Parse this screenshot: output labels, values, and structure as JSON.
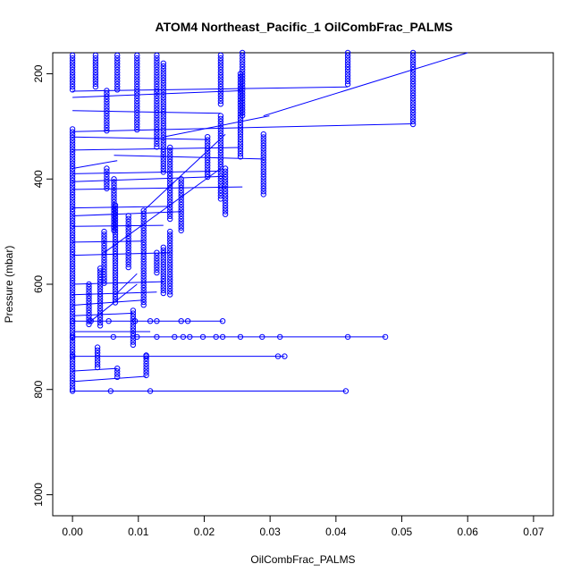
{
  "chart_data": {
    "type": "scatter",
    "title": "ATOM4 Northeast_Pacific_1 OilCombFrac_PALMS",
    "xlabel": "OilCombFrac_PALMS",
    "ylabel": "Pressure (mbar)",
    "xlim": [
      -0.003,
      0.073
    ],
    "ylim": [
      1040,
      160
    ],
    "y_reversed": true,
    "x_ticks": [
      0.0,
      0.01,
      0.02,
      0.03,
      0.04,
      0.05,
      0.06,
      0.07
    ],
    "x_tick_labels": [
      "0.00",
      "0.01",
      "0.02",
      "0.03",
      "0.04",
      "0.05",
      "0.06",
      "0.07"
    ],
    "y_ticks": [
      200,
      400,
      600,
      800,
      1000
    ],
    "y_tick_labels": [
      "200",
      "400",
      "600",
      "800",
      "1000"
    ],
    "color": "#0000ff",
    "marker": "open-circle",
    "grid": false,
    "columns": [
      {
        "x": 0.0,
        "p_top": 305,
        "p_bottom": 805
      },
      {
        "x": 0.0,
        "p_top": 165,
        "p_bottom": 232
      },
      {
        "x": 0.0035,
        "p_top": 165,
        "p_bottom": 230
      },
      {
        "x": 0.0052,
        "p_top": 232,
        "p_bottom": 310
      },
      {
        "x": 0.0052,
        "p_top": 380,
        "p_bottom": 420
      },
      {
        "x": 0.0063,
        "p_top": 400,
        "p_bottom": 500
      },
      {
        "x": 0.0068,
        "p_top": 165,
        "p_bottom": 232
      },
      {
        "x": 0.0098,
        "p_top": 165,
        "p_bottom": 308
      },
      {
        "x": 0.0128,
        "p_top": 165,
        "p_bottom": 340
      },
      {
        "x": 0.0138,
        "p_top": 180,
        "p_bottom": 390
      },
      {
        "x": 0.0148,
        "p_top": 340,
        "p_bottom": 480
      },
      {
        "x": 0.0165,
        "p_top": 400,
        "p_bottom": 500
      },
      {
        "x": 0.0205,
        "p_top": 320,
        "p_bottom": 400
      },
      {
        "x": 0.0225,
        "p_top": 165,
        "p_bottom": 260
      },
      {
        "x": 0.0225,
        "p_top": 280,
        "p_bottom": 440
      },
      {
        "x": 0.0232,
        "p_top": 380,
        "p_bottom": 470
      },
      {
        "x": 0.0255,
        "p_top": 200,
        "p_bottom": 360
      },
      {
        "x": 0.0258,
        "p_top": 160,
        "p_bottom": 280
      },
      {
        "x": 0.029,
        "p_top": 315,
        "p_bottom": 430
      },
      {
        "x": 0.0418,
        "p_top": 160,
        "p_bottom": 225
      },
      {
        "x": 0.0517,
        "p_top": 160,
        "p_bottom": 300
      },
      {
        "x": 0.0025,
        "p_top": 600,
        "p_bottom": 680
      },
      {
        "x": 0.0042,
        "p_top": 570,
        "p_bottom": 680
      },
      {
        "x": 0.0048,
        "p_top": 500,
        "p_bottom": 600
      },
      {
        "x": 0.0065,
        "p_top": 450,
        "p_bottom": 640
      },
      {
        "x": 0.0085,
        "p_top": 470,
        "p_bottom": 570
      },
      {
        "x": 0.0092,
        "p_top": 650,
        "p_bottom": 720
      },
      {
        "x": 0.0108,
        "p_top": 460,
        "p_bottom": 640
      },
      {
        "x": 0.0128,
        "p_top": 540,
        "p_bottom": 580
      },
      {
        "x": 0.0138,
        "p_top": 530,
        "p_bottom": 620
      },
      {
        "x": 0.0148,
        "p_top": 500,
        "p_bottom": 620
      },
      {
        "x": 0.0038,
        "p_top": 720,
        "p_bottom": 760
      },
      {
        "x": 0.0068,
        "p_top": 760,
        "p_bottom": 780
      },
      {
        "x": 0.0112,
        "p_top": 735,
        "p_bottom": 775
      }
    ],
    "levels": [
      {
        "p": 670,
        "x": [
          0.0,
          0.0028,
          0.0055,
          0.0095,
          0.0118,
          0.0128,
          0.0165,
          0.0175,
          0.0228
        ]
      },
      {
        "p": 700,
        "x": [
          0.0,
          0.0062,
          0.0098,
          0.0128,
          0.0155,
          0.0168,
          0.0178,
          0.0198,
          0.0218,
          0.0228,
          0.0255,
          0.0288,
          0.0315,
          0.0418,
          0.0475
        ]
      },
      {
        "p": 737,
        "x": [
          0.0,
          0.0112,
          0.0312,
          0.0322
        ]
      },
      {
        "p": 803,
        "x": [
          0.0,
          0.0058,
          0.0118,
          0.0415
        ]
      }
    ],
    "connectors": [
      {
        "x": [
          0.0,
          0.0418
        ],
        "p": [
          233,
          225
        ]
      },
      {
        "x": [
          0.0,
          0.0258
        ],
        "p": [
          245,
          232
        ]
      },
      {
        "x": [
          0.0,
          0.0225
        ],
        "p": [
          270,
          275
        ]
      },
      {
        "x": [
          0.0,
          0.0517
        ],
        "p": [
          310,
          295
        ]
      },
      {
        "x": [
          0.0,
          0.0205
        ],
        "p": [
          320,
          325
        ]
      },
      {
        "x": [
          0.0,
          0.0255
        ],
        "p": [
          345,
          340
        ]
      },
      {
        "x": [
          0.0063,
          0.029
        ],
        "p": [
          355,
          362
        ]
      },
      {
        "x": [
          0.0,
          0.0225
        ],
        "p": [
          390,
          385
        ]
      },
      {
        "x": [
          0.0,
          0.0232
        ],
        "p": [
          405,
          395
        ]
      },
      {
        "x": [
          0.0,
          0.0258
        ],
        "p": [
          420,
          415
        ]
      },
      {
        "x": [
          0.0,
          0.0148
        ],
        "p": [
          455,
          452
        ]
      },
      {
        "x": [
          0.0,
          0.0165
        ],
        "p": [
          470,
          462
        ]
      },
      {
        "x": [
          0.0,
          0.0138
        ],
        "p": [
          490,
          488
        ]
      },
      {
        "x": [
          0.0,
          0.0108
        ],
        "p": [
          520,
          518
        ]
      },
      {
        "x": [
          0.0,
          0.0148
        ],
        "p": [
          545,
          540
        ]
      },
      {
        "x": [
          0.0,
          0.0138
        ],
        "p": [
          600,
          595
        ]
      },
      {
        "x": [
          0.0,
          0.0128
        ],
        "p": [
          620,
          615
        ]
      },
      {
        "x": [
          0.0,
          0.0108
        ],
        "p": [
          640,
          630
        ]
      },
      {
        "x": [
          0.0,
          0.0092
        ],
        "p": [
          660,
          655
        ]
      },
      {
        "x": [
          0.0,
          0.0118
        ],
        "p": [
          690,
          690
        ]
      },
      {
        "x": [
          0.0,
          0.0068
        ],
        "p": [
          765,
          760
        ]
      },
      {
        "x": [
          0.0,
          0.0112
        ],
        "p": [
          785,
          775
        ]
      },
      {
        "x": [
          0.0,
          0.0068
        ],
        "p": [
          380,
          365
        ]
      },
      {
        "x": [
          0.0028,
          0.0098
        ],
        "p": [
          670,
          600
        ]
      },
      {
        "x": [
          0.0048,
          0.0225
        ],
        "p": [
          540,
          380
        ]
      },
      {
        "x": [
          0.0138,
          0.0299
        ],
        "p": [
          320,
          280
        ]
      },
      {
        "x": [
          0.029,
          0.06
        ],
        "p": [
          280,
          160
        ]
      },
      {
        "x": [
          0.0065,
          0.0098
        ],
        "p": [
          620,
          580
        ]
      },
      {
        "x": [
          0.0108,
          0.0232
        ],
        "p": [
          460,
          315
        ]
      }
    ]
  }
}
